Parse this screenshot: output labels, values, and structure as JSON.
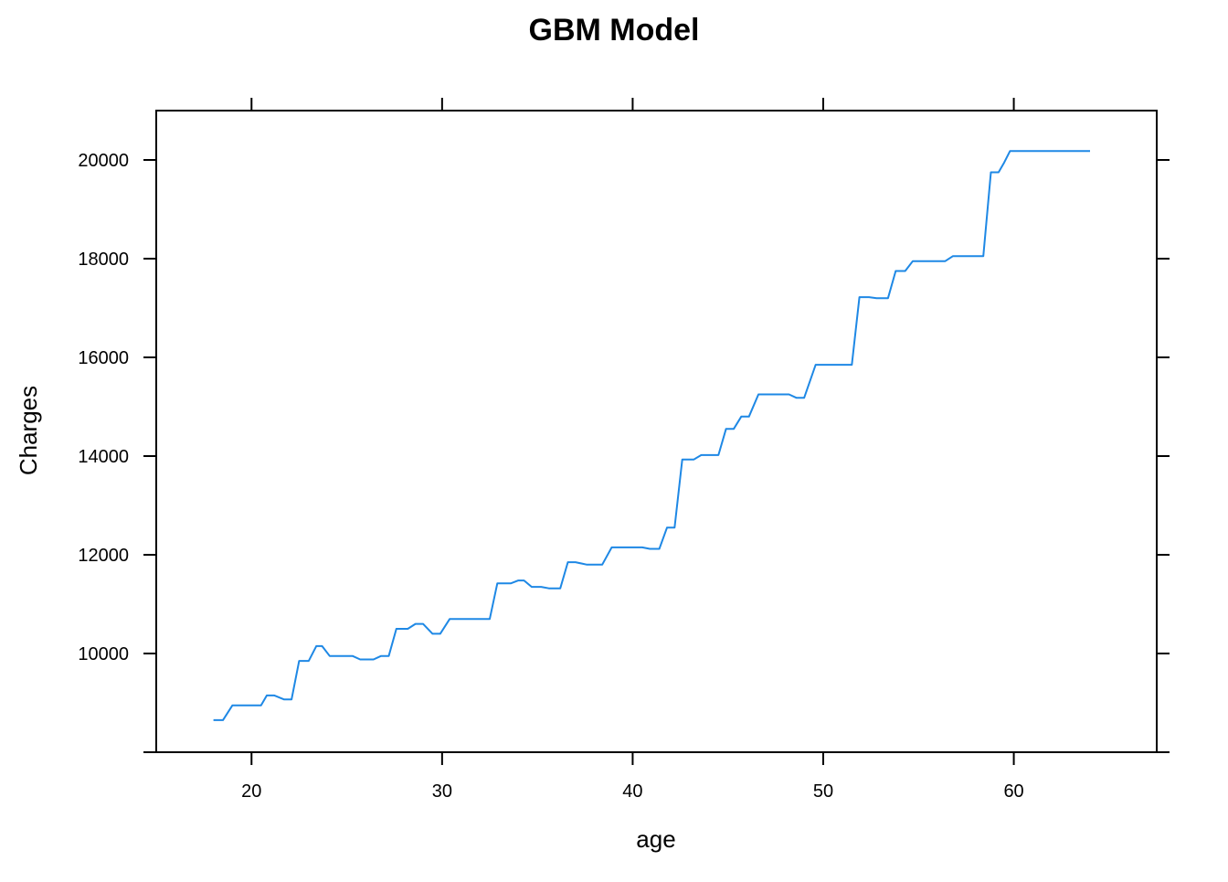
{
  "chart_data": {
    "type": "line",
    "title": "GBM Model",
    "xlabel": "age",
    "ylabel": "Charges",
    "xlim": [
      15,
      67.5
    ],
    "ylim": [
      8000,
      21000
    ],
    "x_ticks": [
      20,
      30,
      40,
      50,
      60
    ],
    "x_tick_labels": [
      "20",
      "30",
      "40",
      "50",
      "60"
    ],
    "y_ticks": [
      8000,
      10000,
      12000,
      14000,
      16000,
      18000,
      20000
    ],
    "y_tick_labels": [
      "",
      "10000",
      "12000",
      "14000",
      "16000",
      "18000",
      "20000"
    ],
    "grid": false,
    "legend": "none",
    "colors": {
      "line": "#1e88e5",
      "axis": "#000000"
    },
    "series": [
      {
        "x": [
          18.0,
          18.5,
          19.0,
          20.5,
          20.8,
          21.2,
          21.7,
          22.1,
          22.5,
          23.0,
          23.4,
          23.7,
          24.1,
          24.5,
          25.3,
          25.7,
          26.4,
          26.8,
          27.2,
          27.6,
          28.2,
          28.6,
          29.0,
          29.5,
          29.9,
          30.4,
          32.5,
          32.9,
          33.6,
          34.0,
          34.3,
          34.7,
          35.2,
          35.6,
          36.2,
          36.6,
          37.0,
          37.6,
          38.4,
          38.9,
          39.3,
          40.5,
          40.9,
          41.4,
          41.8,
          42.2,
          42.6,
          43.2,
          43.6,
          44.5,
          44.9,
          45.3,
          45.7,
          46.1,
          46.6,
          47.0,
          48.2,
          48.6,
          49.0,
          49.6,
          50.0,
          51.5,
          51.9,
          52.4,
          52.8,
          53.4,
          53.8,
          54.3,
          54.7,
          55.0,
          56.4,
          56.8,
          58.4,
          58.8,
          59.2,
          59.5,
          59.8,
          60.2,
          64.0
        ],
        "y": [
          8650,
          8650,
          8950,
          8950,
          9150,
          9150,
          9070,
          9070,
          9850,
          9850,
          10150,
          10150,
          9950,
          9950,
          9950,
          9880,
          9880,
          9950,
          9950,
          10500,
          10500,
          10600,
          10600,
          10400,
          10400,
          10700,
          10700,
          11420,
          11420,
          11480,
          11480,
          11350,
          11350,
          11320,
          11320,
          11850,
          11850,
          11800,
          11800,
          12150,
          12150,
          12150,
          12120,
          12120,
          12550,
          12550,
          13930,
          13930,
          14020,
          14020,
          14550,
          14550,
          14800,
          14800,
          15250,
          15250,
          15250,
          15180,
          15180,
          15850,
          15850,
          15850,
          17220,
          17220,
          17200,
          17200,
          17750,
          17750,
          17950,
          17950,
          17950,
          18050,
          18050,
          19750,
          19750,
          19950,
          20180,
          20180,
          20180
        ]
      }
    ]
  }
}
